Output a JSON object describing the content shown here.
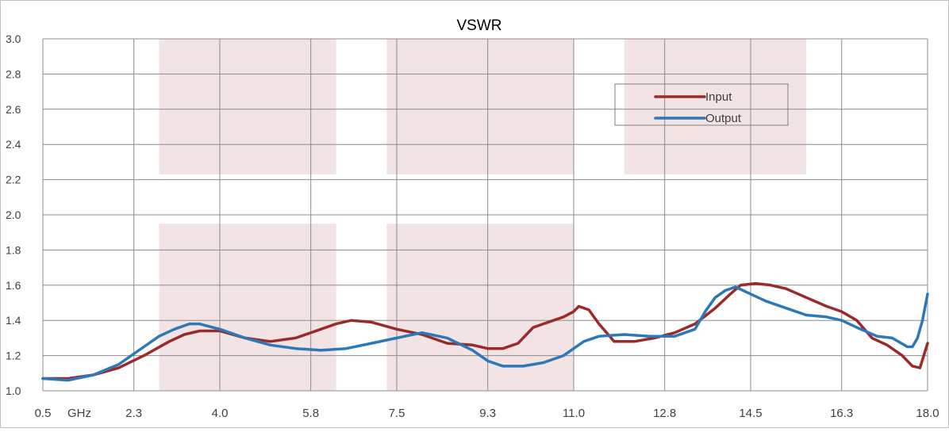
{
  "chart_data": {
    "type": "line",
    "title": "VSWR",
    "xlabel": "",
    "ylabel": "",
    "x_unit_label": "GHz",
    "xlim": [
      0.5,
      18.0
    ],
    "ylim": [
      1.0,
      3.0
    ],
    "x_ticks": [
      {
        "value": 0.5,
        "label": "0.5"
      },
      {
        "value": 2.3,
        "label": "2.3"
      },
      {
        "value": 4.0,
        "label": "4.0"
      },
      {
        "value": 5.8,
        "label": "5.8"
      },
      {
        "value": 7.5,
        "label": "7.5"
      },
      {
        "value": 9.3,
        "label": "9.3"
      },
      {
        "value": 11.0,
        "label": "11.0"
      },
      {
        "value": 12.8,
        "label": "12.8"
      },
      {
        "value": 14.5,
        "label": "14.5"
      },
      {
        "value": 16.3,
        "label": "16.3"
      },
      {
        "value": 18.0,
        "label": "18.0"
      }
    ],
    "y_ticks": [
      {
        "value": 1.0,
        "label": "1.0"
      },
      {
        "value": 1.2,
        "label": "1.2"
      },
      {
        "value": 1.4,
        "label": "1.4"
      },
      {
        "value": 1.6,
        "label": "1.6"
      },
      {
        "value": 1.8,
        "label": "1.8"
      },
      {
        "value": 2.0,
        "label": "2.0"
      },
      {
        "value": 2.2,
        "label": "2.2"
      },
      {
        "value": 2.4,
        "label": "2.4"
      },
      {
        "value": 2.6,
        "label": "2.6"
      },
      {
        "value": 2.8,
        "label": "2.8"
      },
      {
        "value": 3.0,
        "label": "3.0"
      }
    ],
    "grid": true,
    "legend_position": "top-right",
    "background_bands": [
      {
        "x_from": 2.8,
        "x_to": 6.3,
        "y_from": 2.23,
        "y_to": 3.0
      },
      {
        "x_from": 2.8,
        "x_to": 6.3,
        "y_from": 1.0,
        "y_to": 1.95
      },
      {
        "x_from": 7.3,
        "x_to": 11.0,
        "y_from": 2.23,
        "y_to": 3.0
      },
      {
        "x_from": 7.3,
        "x_to": 11.0,
        "y_from": 1.0,
        "y_to": 1.95
      },
      {
        "x_from": 12.0,
        "x_to": 15.6,
        "y_from": 2.23,
        "y_to": 3.0
      }
    ],
    "band_color": "#f2e4e4",
    "series": [
      {
        "name": "Input",
        "color": "#9b2a2a",
        "x": [
          0.5,
          1.0,
          1.5,
          2.0,
          2.5,
          3.0,
          3.3,
          3.6,
          4.0,
          4.5,
          5.0,
          5.5,
          6.0,
          6.3,
          6.6,
          7.0,
          7.5,
          8.0,
          8.5,
          9.0,
          9.3,
          9.6,
          9.9,
          10.2,
          10.5,
          10.8,
          11.0,
          11.1,
          11.3,
          11.5,
          11.8,
          12.2,
          12.6,
          13.0,
          13.4,
          13.8,
          14.1,
          14.3,
          14.6,
          14.9,
          15.2,
          15.6,
          16.0,
          16.3,
          16.6,
          16.9,
          17.2,
          17.5,
          17.7,
          17.85,
          18.0
        ],
        "y": [
          1.07,
          1.07,
          1.09,
          1.13,
          1.2,
          1.28,
          1.32,
          1.34,
          1.34,
          1.3,
          1.28,
          1.3,
          1.35,
          1.38,
          1.4,
          1.39,
          1.35,
          1.32,
          1.27,
          1.26,
          1.24,
          1.24,
          1.27,
          1.36,
          1.39,
          1.42,
          1.45,
          1.48,
          1.46,
          1.38,
          1.28,
          1.28,
          1.3,
          1.33,
          1.38,
          1.47,
          1.55,
          1.6,
          1.61,
          1.6,
          1.58,
          1.53,
          1.48,
          1.45,
          1.4,
          1.3,
          1.26,
          1.2,
          1.14,
          1.13,
          1.27
        ]
      },
      {
        "name": "Output",
        "color": "#2d78b8",
        "x": [
          0.5,
          1.0,
          1.5,
          2.0,
          2.5,
          2.8,
          3.1,
          3.4,
          3.6,
          4.0,
          4.5,
          5.0,
          5.5,
          6.0,
          6.5,
          7.0,
          7.5,
          8.0,
          8.5,
          9.0,
          9.3,
          9.6,
          10.0,
          10.4,
          10.8,
          11.0,
          11.2,
          11.5,
          12.0,
          12.5,
          13.0,
          13.4,
          13.6,
          13.8,
          14.0,
          14.2,
          14.5,
          14.8,
          15.2,
          15.6,
          16.0,
          16.3,
          16.6,
          17.0,
          17.3,
          17.6,
          17.7,
          17.8,
          17.9,
          18.0
        ],
        "y": [
          1.07,
          1.06,
          1.09,
          1.15,
          1.25,
          1.31,
          1.35,
          1.38,
          1.38,
          1.35,
          1.3,
          1.26,
          1.24,
          1.23,
          1.24,
          1.27,
          1.3,
          1.33,
          1.3,
          1.23,
          1.17,
          1.14,
          1.14,
          1.16,
          1.2,
          1.24,
          1.28,
          1.31,
          1.32,
          1.31,
          1.31,
          1.35,
          1.45,
          1.53,
          1.57,
          1.59,
          1.55,
          1.51,
          1.47,
          1.43,
          1.42,
          1.4,
          1.36,
          1.31,
          1.3,
          1.25,
          1.25,
          1.3,
          1.4,
          1.55
        ]
      }
    ]
  }
}
